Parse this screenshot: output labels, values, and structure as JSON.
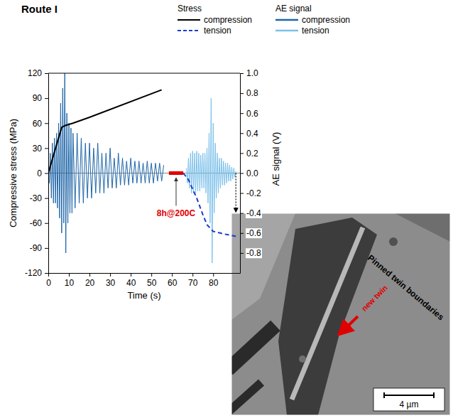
{
  "chart_data": {
    "type": "line",
    "title": "Route I",
    "x_label": "Time (s)",
    "y_label": "Compressive stress (MPa)",
    "y2_label": "AE signal (V)",
    "xlim": [
      0,
      93
    ],
    "xticks": [
      0,
      10,
      20,
      30,
      40,
      50,
      60,
      70,
      80
    ],
    "ylim": [
      -120,
      120
    ],
    "yticks": [
      -120,
      -90,
      -60,
      -30,
      0,
      30,
      60,
      90,
      120
    ],
    "y2lim": [
      -1.0,
      1.0
    ],
    "y2ticks": [
      -0.8,
      -0.6,
      -0.4,
      -0.2,
      {
        "value": 0,
        "label": "0.0"
      },
      0.2,
      0.4,
      0.6,
      0.8,
      {
        "value": 1,
        "label": "1.0"
      }
    ],
    "legend": "top",
    "series": [
      {
        "name": "compression",
        "group": "Stress",
        "color": "#000000",
        "line_style": "solid",
        "x": [
          0,
          6.5,
          8,
          12,
          20,
          55
        ],
        "values": [
          0,
          55,
          57,
          60,
          67,
          100
        ]
      },
      {
        "name": "tension",
        "group": "Stress",
        "color": "#1a3cc8",
        "line_style": "dashed",
        "x": [
          65.5,
          68,
          72,
          75,
          77,
          80,
          85,
          91
        ],
        "values": [
          0,
          -8,
          -30,
          -50,
          -62,
          -70,
          -73,
          -76
        ]
      },
      {
        "name": "compression",
        "group": "AE signal",
        "color": "#1f66a8",
        "line_style": "solid",
        "axis": "y2",
        "x": [
          0,
          0.5,
          1,
          1.5,
          2,
          2.5,
          3,
          3.5,
          4,
          4.5,
          5,
          5.5,
          6,
          6.5,
          7,
          7.5,
          8,
          8.5,
          9,
          9.5,
          10,
          10.5,
          11,
          11.5,
          12,
          13,
          14,
          15,
          16,
          17,
          18,
          19,
          20,
          21,
          22,
          23,
          24,
          25,
          26,
          27,
          28,
          29,
          30,
          31,
          32,
          33,
          34,
          35,
          36,
          37,
          38,
          39,
          40,
          41,
          42,
          43,
          44,
          45,
          46,
          47,
          48,
          49,
          50,
          51,
          52,
          53,
          54,
          55,
          56
        ],
        "values": [
          0.05,
          -0.1,
          0.2,
          -0.25,
          0.3,
          -0.3,
          0.35,
          -0.3,
          0.4,
          -0.35,
          0.5,
          -0.45,
          0.7,
          -0.6,
          0.85,
          -0.5,
          1.0,
          -0.8,
          0.6,
          -0.5,
          0.5,
          -0.4,
          0.45,
          -0.4,
          0.4,
          -0.35,
          0.4,
          -0.3,
          0.35,
          -0.3,
          0.3,
          -0.25,
          0.3,
          -0.25,
          0.25,
          -0.2,
          0.3,
          -0.2,
          0.2,
          -0.2,
          0.2,
          -0.15,
          0.25,
          -0.15,
          0.15,
          -0.15,
          0.2,
          -0.12,
          0.15,
          -0.12,
          0.12,
          -0.12,
          0.15,
          -0.1,
          0.12,
          -0.1,
          0.12,
          -0.1,
          0.1,
          -0.1,
          0.12,
          -0.1,
          0.1,
          -0.1,
          0.1,
          -0.08,
          0.1,
          -0.08,
          0.08
        ]
      },
      {
        "name": "tension",
        "group": "AE signal",
        "color": "#7cc0ea",
        "line_style": "solid",
        "axis": "y2",
        "x": [
          67,
          67.5,
          68,
          68.5,
          69,
          69.5,
          70,
          70.5,
          71,
          71.5,
          72,
          72.5,
          73,
          73.5,
          74,
          74.5,
          75,
          75.5,
          76,
          76.5,
          77,
          77.5,
          78,
          78.5,
          79,
          79.5,
          80,
          80.5,
          81,
          81.5,
          82,
          82.5,
          83,
          83.5,
          84,
          84.5,
          85,
          85.5,
          86,
          86.5,
          87,
          87.5,
          88,
          88.5,
          89,
          89.5,
          90,
          90.5,
          91
        ],
        "values": [
          0.05,
          -0.1,
          0.15,
          -0.15,
          0.2,
          -0.2,
          0.22,
          -0.2,
          0.2,
          -0.2,
          0.22,
          -0.18,
          0.2,
          -0.18,
          0.18,
          -0.15,
          0.2,
          -0.15,
          0.2,
          -0.2,
          0.25,
          -0.3,
          0.4,
          -0.5,
          0.75,
          -0.9,
          0.5,
          -0.4,
          0.3,
          -0.25,
          0.2,
          -0.2,
          0.15,
          -0.15,
          0.15,
          -0.12,
          0.12,
          -0.12,
          0.1,
          -0.1,
          0.1,
          -0.08,
          0.08,
          -0.08,
          0.06,
          -0.06,
          0.05,
          -0.04,
          0.02
        ]
      }
    ],
    "annotations": [
      {
        "text": "8h@200C",
        "x_start": 58.5,
        "x_end": 65.5,
        "color": "#e00000"
      }
    ]
  },
  "inset": {
    "annotations": [
      "Pinned twin boundaries",
      "new twin"
    ],
    "scale_bar": "4 µm"
  }
}
